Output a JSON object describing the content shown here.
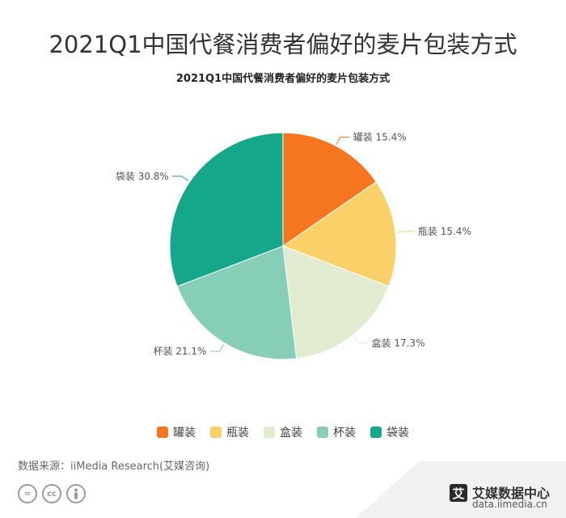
{
  "header": {
    "title": "2021Q1中国代餐消费者偏好的麦片包装方式"
  },
  "chart_data": {
    "type": "pie",
    "title": "2021Q1中国代餐消费者偏好的麦片包装方式",
    "categories": [
      "罐装",
      "瓶装",
      "盒装",
      "杯装",
      "袋装"
    ],
    "values": [
      15.4,
      15.4,
      17.3,
      21.1,
      30.8
    ],
    "unit": "%",
    "colors": [
      "#f5761f",
      "#fcd068",
      "#e1ebd0",
      "#87ceb8",
      "#14a78a"
    ],
    "data_labels": [
      "罐装 15.4%",
      "瓶装 15.4%",
      "盒装 17.3%",
      "杯装 21.1%",
      "袋装 30.8%"
    ],
    "legend_position": "bottom"
  },
  "footer": {
    "source": "数据来源：iiMedia Research(艾媒咨询)",
    "license_icons": [
      "equals-icon",
      "cc-icon",
      "person-icon"
    ],
    "brand_logo_char": "艾",
    "brand_name": "艾媒数据中心",
    "brand_url": "data.iimedia.cn"
  }
}
